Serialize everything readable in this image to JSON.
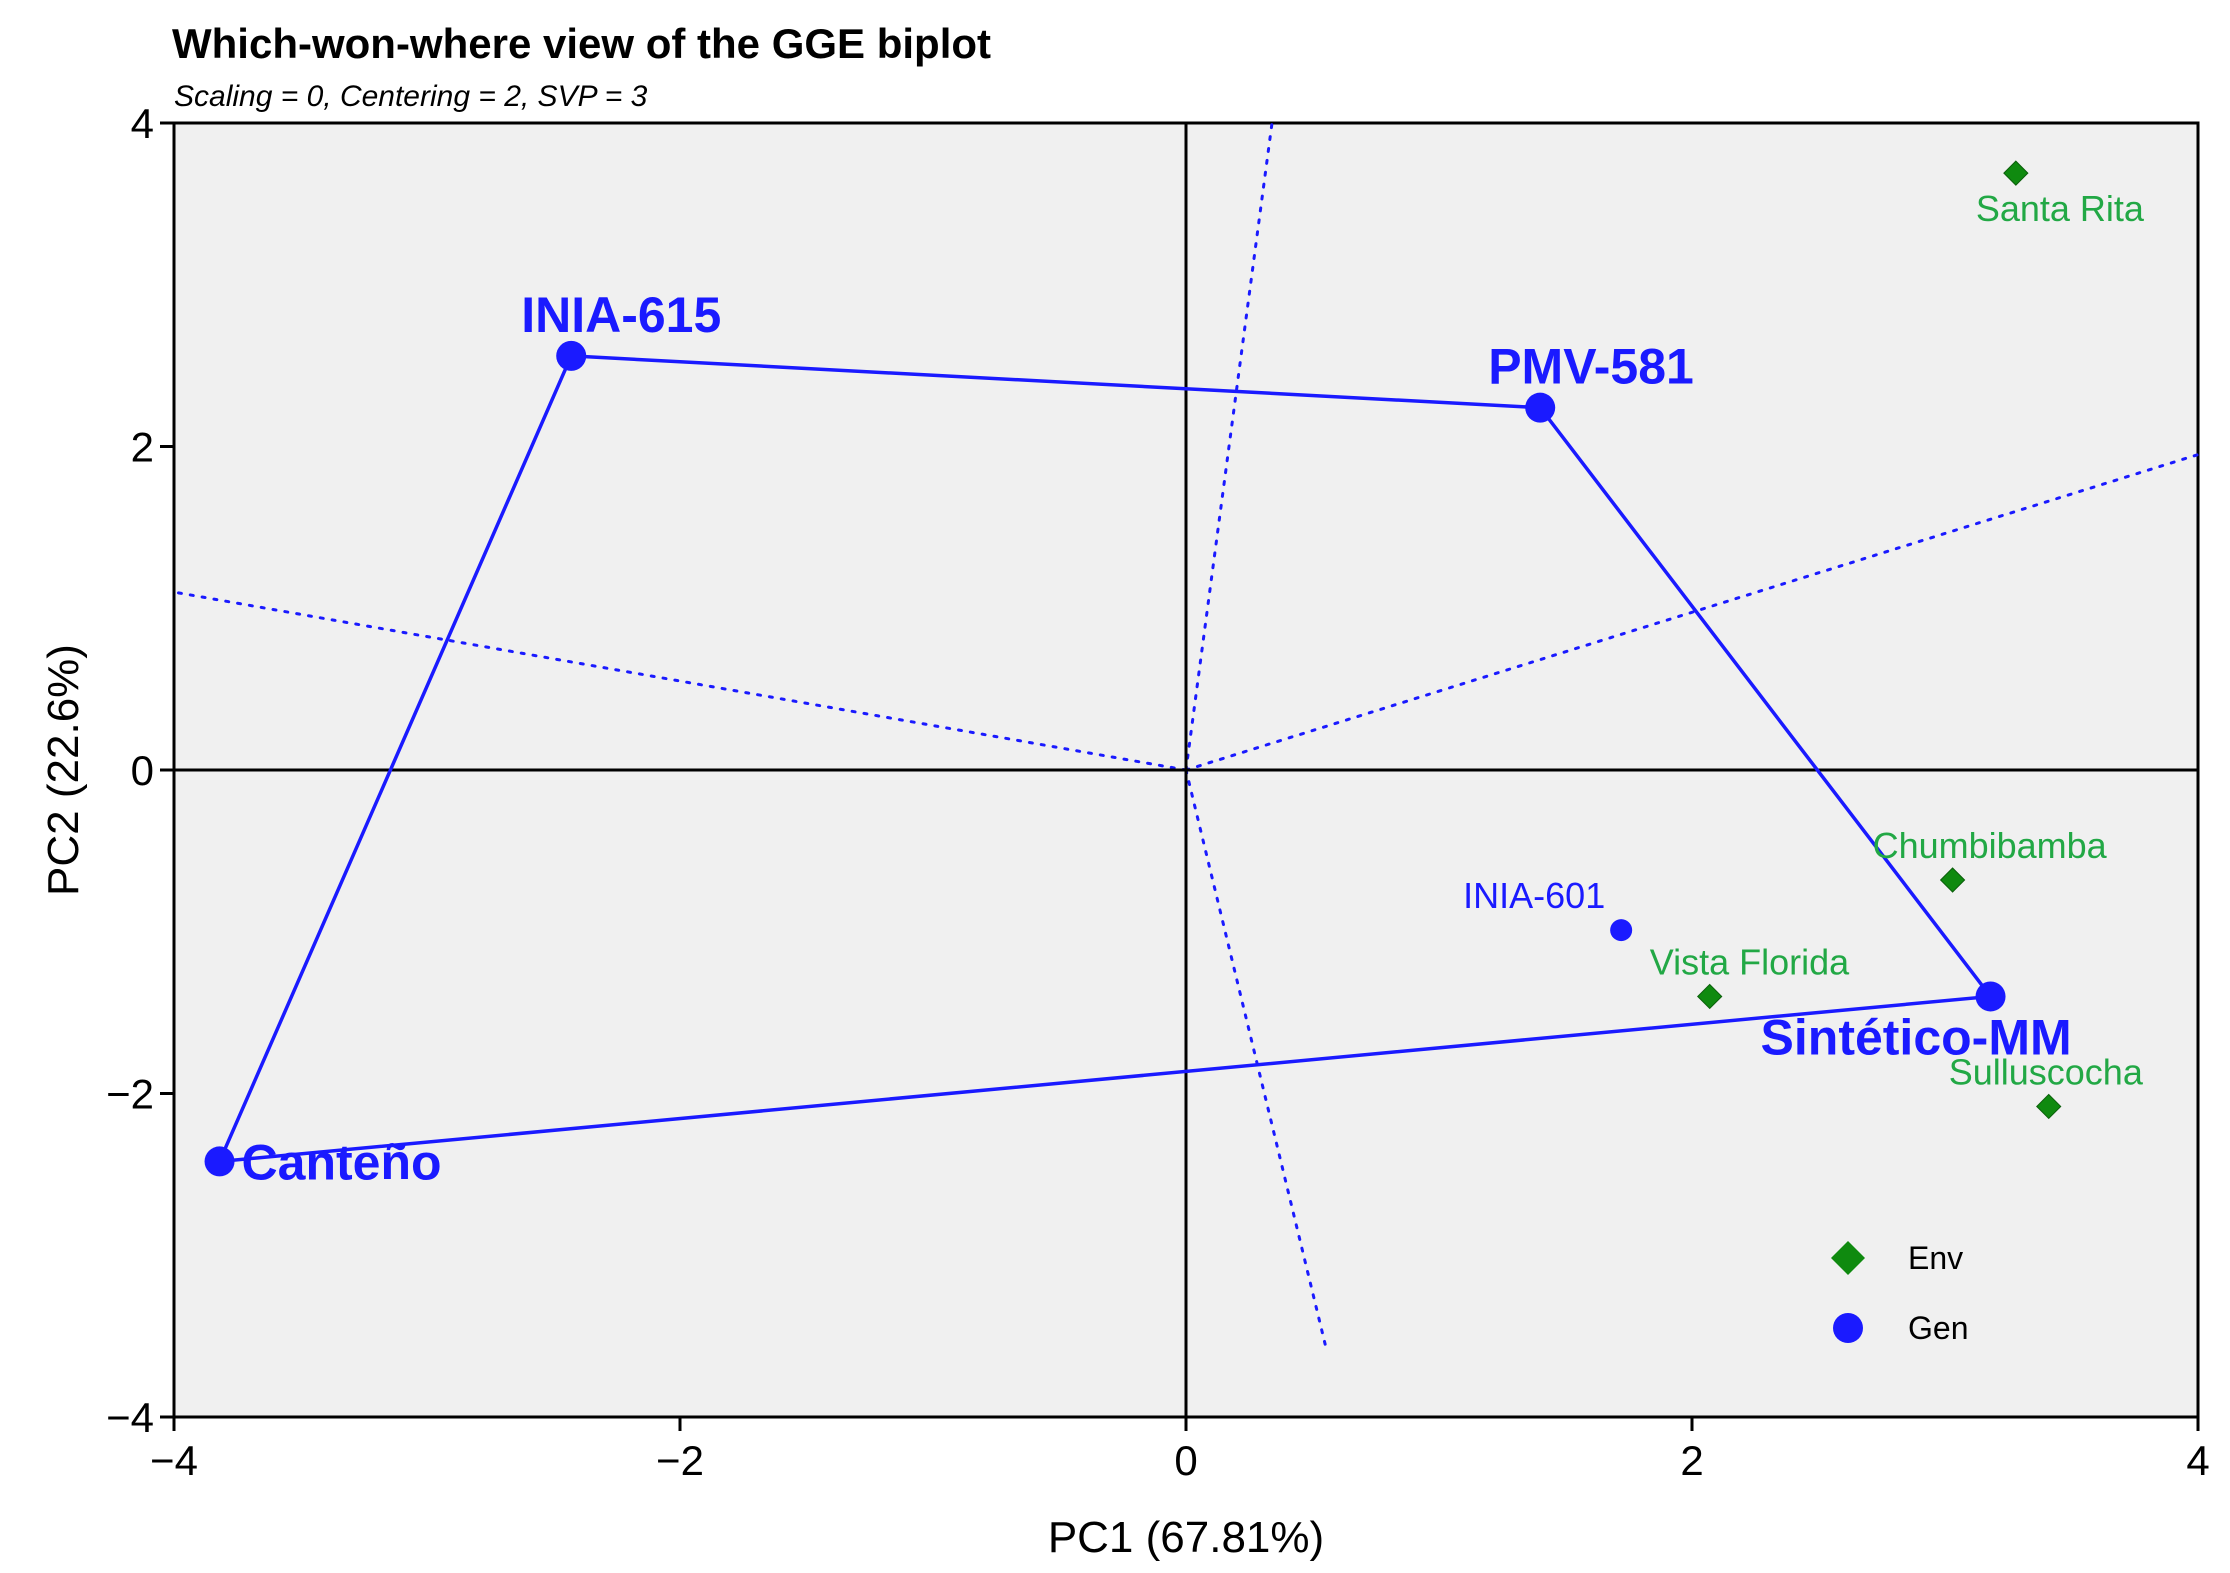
{
  "chart_data": {
    "type": "scatter",
    "title": "Which-won-where view of the GGE biplot",
    "subtitle": "Scaling = 0, Centering = 2, SVP = 3",
    "xlabel": "PC1 (67.81%)",
    "ylabel": "PC2 (22.6%)",
    "xlim": [
      -4,
      4
    ],
    "ylim": [
      -4,
      4
    ],
    "xticks": [
      -4,
      -2,
      0,
      2,
      4
    ],
    "yticks": [
      -4,
      -2,
      0,
      2,
      4
    ],
    "xtick_labels": [
      "−4",
      "−2",
      "0",
      "2",
      "4"
    ],
    "ytick_labels": [
      "−4",
      "−2",
      "0",
      "2",
      "4"
    ],
    "colors": {
      "gen": "#1a1aff",
      "env": "#0f8a0f",
      "env_label": "#22a845",
      "panel": "#f0f0f0"
    },
    "genotypes": [
      {
        "name": "INIA-615",
        "x": -2.43,
        "y": 2.56,
        "vertex": true
      },
      {
        "name": "PMV-581",
        "x": 1.4,
        "y": 2.24,
        "vertex": true
      },
      {
        "name": "Sintético-MM",
        "x": 3.18,
        "y": -1.4,
        "vertex": true
      },
      {
        "name": "Canteño",
        "x": -3.82,
        "y": -2.42,
        "vertex": true
      },
      {
        "name": "INIA-601",
        "x": 1.72,
        "y": -0.99,
        "vertex": false
      }
    ],
    "environments": [
      {
        "name": "Santa Rita",
        "x": 3.28,
        "y": 3.69
      },
      {
        "name": "Chumbibamba",
        "x": 3.03,
        "y": -0.68
      },
      {
        "name": "Vista Florida",
        "x": 2.07,
        "y": -1.4
      },
      {
        "name": "Sulluscocha",
        "x": 3.41,
        "y": -2.08
      }
    ],
    "polygon_order": [
      "INIA-615",
      "PMV-581",
      "Sintético-MM",
      "Canteño"
    ],
    "sector_rays": [
      {
        "x": -4.0,
        "y": 1.1
      },
      {
        "x": 0.34,
        "y": 4.0
      },
      {
        "x": 4.0,
        "y": 1.95
      },
      {
        "x": 0.55,
        "y": -3.55
      }
    ],
    "legend": {
      "position": "bottom-right",
      "entries": [
        {
          "label": "Env",
          "marker": "diamond"
        },
        {
          "label": "Gen",
          "marker": "circle"
        }
      ]
    }
  }
}
